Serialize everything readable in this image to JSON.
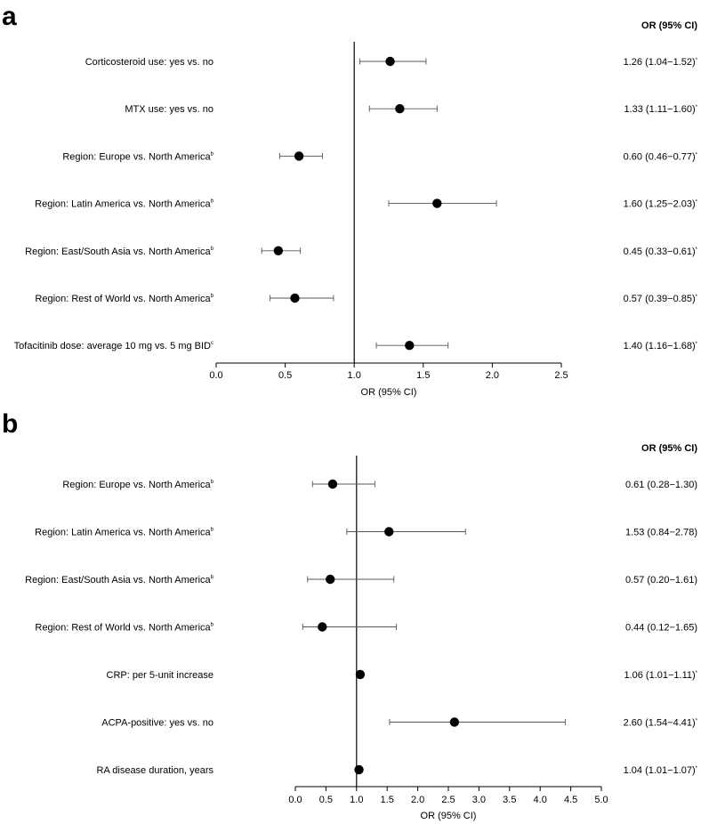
{
  "chart_data": [
    {
      "type": "forest",
      "panel_label": "a",
      "column_header": "OR (95% CI)",
      "xlabel": "OR (95% CI)",
      "xlim": [
        0.0,
        2.5
      ],
      "ticks": [
        "0.0",
        "0.5",
        "1.0",
        "1.5",
        "2.0",
        "2.5"
      ],
      "tick_values": [
        0.0,
        0.5,
        1.0,
        1.5,
        2.0,
        2.5
      ],
      "reference_line": 1.0,
      "rows": [
        {
          "label": "Corticosteroid use: yes vs. no",
          "sup": "",
          "or": 1.26,
          "lo": 1.04,
          "hi": 1.52,
          "ci_text": "1.26 (1.04−1.52)",
          "star": "*"
        },
        {
          "label": "MTX use: yes vs. no",
          "sup": "",
          "or": 1.33,
          "lo": 1.11,
          "hi": 1.6,
          "ci_text": "1.33 (1.11−1.60)",
          "star": "*"
        },
        {
          "label": "Region: Europe vs. North America",
          "sup": "b",
          "or": 0.6,
          "lo": 0.46,
          "hi": 0.77,
          "ci_text": "0.60 (0.46−0.77)",
          "star": "*"
        },
        {
          "label": "Region: Latin America vs. North America",
          "sup": "b",
          "or": 1.6,
          "lo": 1.25,
          "hi": 2.03,
          "ci_text": "1.60 (1.25−2.03)",
          "star": "*"
        },
        {
          "label": "Region: East/South Asia vs. North America",
          "sup": "b",
          "or": 0.45,
          "lo": 0.33,
          "hi": 0.61,
          "ci_text": "0.45 (0.33−0.61)",
          "star": "*"
        },
        {
          "label": "Region: Rest of World vs. North America",
          "sup": "b",
          "or": 0.57,
          "lo": 0.39,
          "hi": 0.85,
          "ci_text": "0.57 (0.39−0.85)",
          "star": "*"
        },
        {
          "label": "Tofacitinib dose: average 10 mg vs. 5 mg BID",
          "sup": "c",
          "or": 1.4,
          "lo": 1.16,
          "hi": 1.68,
          "ci_text": "1.40 (1.16−1.68)",
          "star": "*"
        }
      ]
    },
    {
      "type": "forest",
      "panel_label": "b",
      "column_header": "OR (95% CI)",
      "xlabel": "OR (95% CI)",
      "xlim": [
        0.0,
        5.0
      ],
      "ticks": [
        "0.0",
        "0.5",
        "1.0",
        "1.5",
        "2.0",
        "2.5",
        "3.0",
        "3.5",
        "4.0",
        "4.5",
        "5.0"
      ],
      "tick_values": [
        0.0,
        0.5,
        1.0,
        1.5,
        2.0,
        2.5,
        3.0,
        3.5,
        4.0,
        4.5,
        5.0
      ],
      "reference_line": 1.0,
      "rows": [
        {
          "label": "Region: Europe vs. North America",
          "sup": "b",
          "or": 0.61,
          "lo": 0.28,
          "hi": 1.3,
          "ci_text": "0.61 (0.28−1.30)",
          "star": ""
        },
        {
          "label": "Region: Latin America vs. North America",
          "sup": "b",
          "or": 1.53,
          "lo": 0.84,
          "hi": 2.78,
          "ci_text": "1.53 (0.84−2.78)",
          "star": ""
        },
        {
          "label": "Region: East/South Asia vs. North America",
          "sup": "b",
          "or": 0.57,
          "lo": 0.2,
          "hi": 1.61,
          "ci_text": "0.57 (0.20−1.61)",
          "star": ""
        },
        {
          "label": "Region: Rest of World vs. North America",
          "sup": "b",
          "or": 0.44,
          "lo": 0.12,
          "hi": 1.65,
          "ci_text": "0.44 (0.12−1.65)",
          "star": ""
        },
        {
          "label": "CRP: per 5-unit increase",
          "sup": "",
          "or": 1.06,
          "lo": 1.01,
          "hi": 1.11,
          "ci_text": "1.06 (1.01−1.11)",
          "star": "*"
        },
        {
          "label": "ACPA-positive: yes vs. no",
          "sup": "",
          "or": 2.6,
          "lo": 1.54,
          "hi": 4.41,
          "ci_text": "2.60 (1.54−4.41)",
          "star": "*"
        },
        {
          "label": "RA disease duration, years",
          "sup": "",
          "or": 1.04,
          "lo": 1.01,
          "hi": 1.07,
          "ci_text": "1.04 (1.01−1.07)",
          "star": "*"
        }
      ]
    }
  ]
}
